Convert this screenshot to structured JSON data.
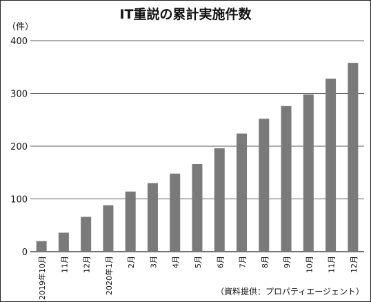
{
  "chart_data": {
    "type": "bar",
    "title": "IT重説の累計実施件数",
    "ylabel": "（件）",
    "xlabel": "",
    "source": "（資料提供：プロパティエージェント）",
    "ylim": [
      0,
      400
    ],
    "yticks": [
      0,
      100,
      200,
      300,
      400
    ],
    "grid": true,
    "bar_color": "#7a7a7a",
    "categories": [
      "2019年10月",
      "11月",
      "12月",
      "2020年1月",
      "2月",
      "3月",
      "4月",
      "5月",
      "6月",
      "7月",
      "8月",
      "9月",
      "10月",
      "11月",
      "12月"
    ],
    "values": [
      20,
      36,
      66,
      88,
      114,
      130,
      148,
      166,
      196,
      224,
      252,
      276,
      298,
      328,
      358
    ]
  }
}
